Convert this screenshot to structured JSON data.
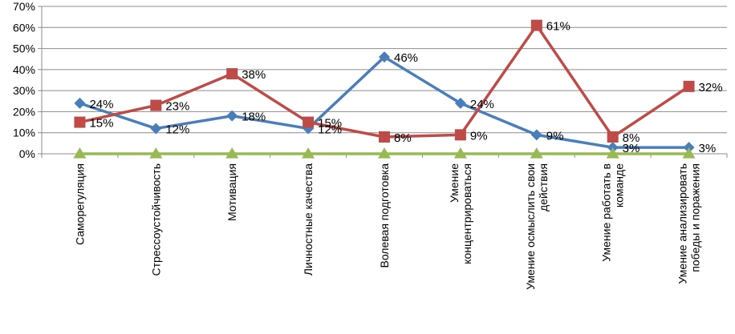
{
  "chart_data": {
    "type": "line",
    "categories": [
      [
        "Саморегуляция"
      ],
      [
        "Стрессоустойчивость"
      ],
      [
        "Мотивация"
      ],
      [
        "Личностные качества"
      ],
      [
        "Волевая подготовка"
      ],
      [
        "Умение",
        "концентрироваться"
      ],
      [
        "Умение осмыслить свои",
        "действия"
      ],
      [
        "Умение работать в",
        "команде"
      ],
      [
        "Умение анализировать",
        "победы и поражения"
      ]
    ],
    "ylim": [
      0,
      70
    ],
    "yticks": [
      "0%",
      "10%",
      "20%",
      "30%",
      "40%",
      "50%",
      "60%",
      "70%"
    ],
    "grid": true,
    "legend": "none",
    "series": [
      {
        "color": "#4a7ebb",
        "marker": "diamond",
        "values": [
          24,
          12,
          18,
          12,
          46,
          24,
          9,
          3,
          3
        ],
        "labels": [
          "24%",
          "12%",
          "18%",
          "12%",
          "46%",
          "24%",
          "9%",
          "3%",
          "3%"
        ]
      },
      {
        "color": "#be4b48",
        "marker": "square",
        "values": [
          15,
          23,
          38,
          15,
          8,
          9,
          61,
          8,
          32
        ],
        "labels": [
          "15%",
          "23%",
          "38%",
          "15%",
          "8%",
          "9%",
          "61%",
          "8%",
          "32%"
        ]
      },
      {
        "color": "#98b954",
        "marker": "triangle",
        "values": [
          0,
          0,
          0,
          0,
          0,
          0,
          0,
          0,
          0
        ],
        "labels": []
      }
    ]
  }
}
